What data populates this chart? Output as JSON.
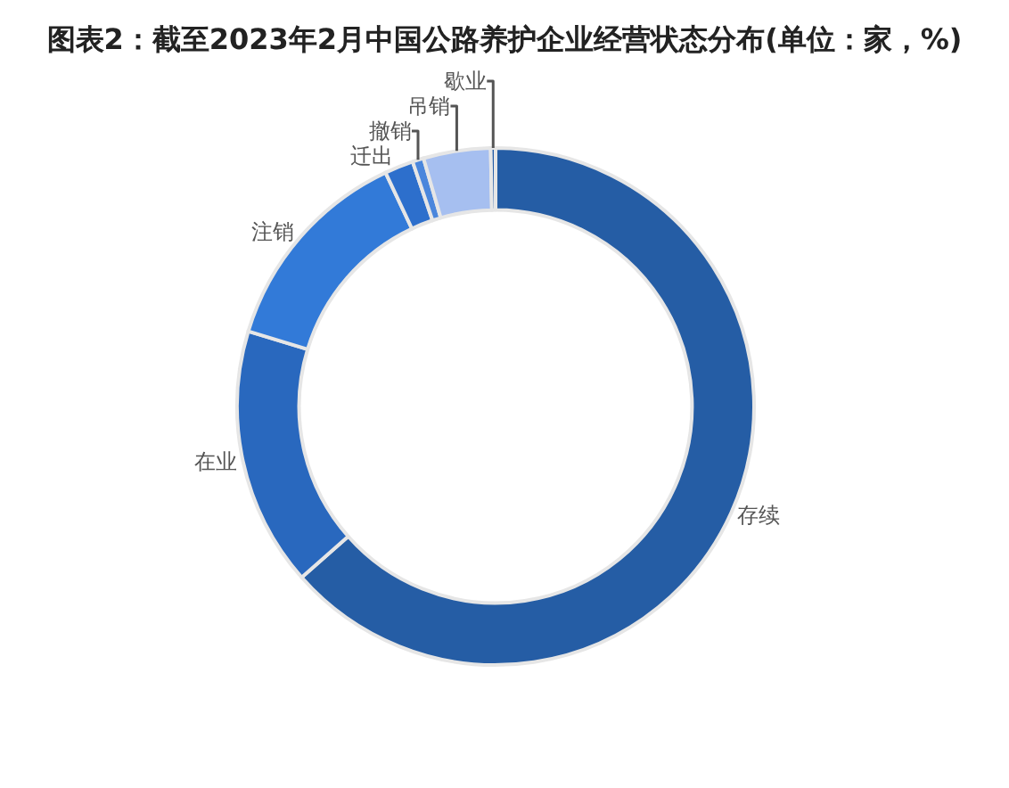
{
  "chart_data": {
    "type": "donut",
    "title": "图表2：截至2023年2月中国公路养护企业经营状态分布(单位：家，%)",
    "categories": [
      "存续",
      "在业",
      "注销",
      "迁出",
      "撤销",
      "吊销",
      "歇业"
    ],
    "values": [
      63.5,
      16.2,
      13.3,
      1.8,
      0.7,
      4.2,
      0.3
    ],
    "colors": [
      "#255da5",
      "#2968be",
      "#327ad8",
      "#2d6fcc",
      "#4a86dc",
      "#a6bff0",
      "#245ca6"
    ]
  }
}
